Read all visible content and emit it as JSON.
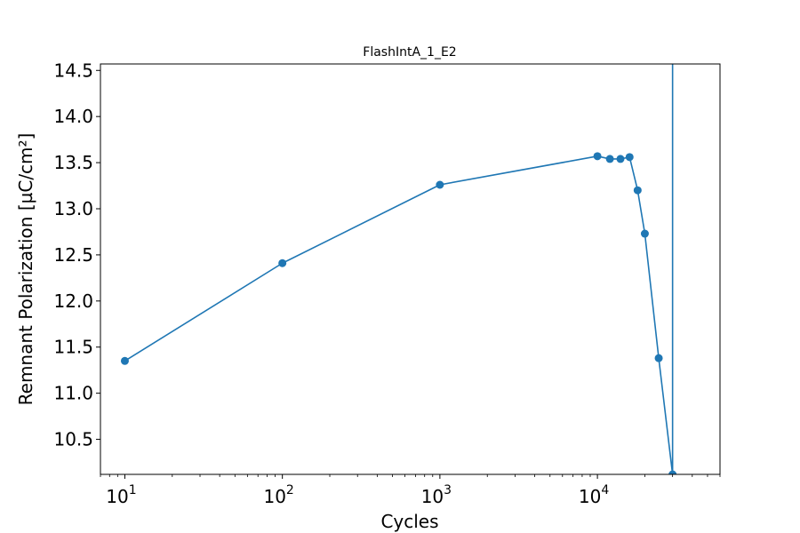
{
  "chart_data": {
    "type": "line",
    "title": "FlashIntA_1_E2",
    "xlabel": "Cycles",
    "ylabel": "Remnant Polarization [µC/cm²]",
    "x_scale": "log",
    "xlim": [
      7,
      60000
    ],
    "ylim": [
      10.12,
      14.57
    ],
    "x_ticks": [
      {
        "value": 10,
        "base": "10",
        "exp": "1"
      },
      {
        "value": 100,
        "base": "10",
        "exp": "2"
      },
      {
        "value": 1000,
        "base": "10",
        "exp": "3"
      },
      {
        "value": 10000,
        "base": "10",
        "exp": "4"
      }
    ],
    "y_ticks": [
      "10.5",
      "11.0",
      "11.5",
      "12.0",
      "12.5",
      "13.0",
      "13.5",
      "14.0",
      "14.5"
    ],
    "grid": false,
    "color": "#1f77b4",
    "series": [
      {
        "x": [
          10,
          100,
          1000,
          10000,
          12000,
          14000,
          16000,
          18000,
          20000,
          24500,
          30000,
          30000
        ],
        "y": [
          11.35,
          12.41,
          13.26,
          13.57,
          13.54,
          13.54,
          13.56,
          13.2,
          12.73,
          11.38,
          10.12,
          14.6
        ],
        "markers": [
          true,
          true,
          true,
          true,
          true,
          true,
          true,
          true,
          true,
          true,
          true,
          false
        ]
      }
    ]
  }
}
